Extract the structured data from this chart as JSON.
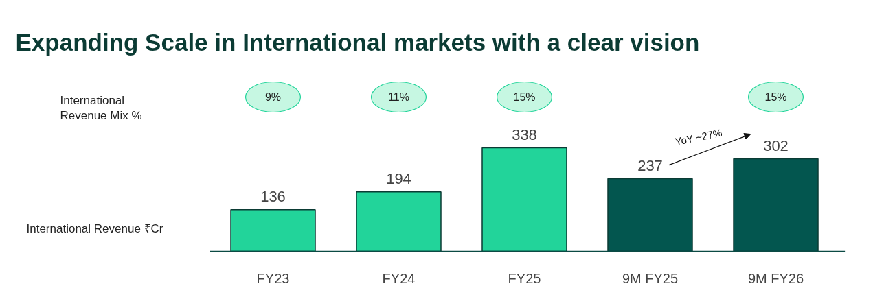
{
  "chart_data": {
    "type": "bar",
    "title": "Expanding Scale in International markets with a clear vision",
    "ylabel": "International Revenue ₹Cr",
    "legend_title": "International Revenue Mix %",
    "categories": [
      "FY23",
      "FY24",
      "FY25",
      "9M FY25",
      "9M FY26"
    ],
    "values": [
      136,
      194,
      338,
      237,
      302
    ],
    "colors": [
      "#22d49a",
      "#22d49a",
      "#22d49a",
      "#03564f",
      "#03564f"
    ],
    "data_labels": true,
    "annotations": [
      "9%",
      "11%",
      "15%",
      "15%",
      "YoY ~27%"
    ]
  }
}
